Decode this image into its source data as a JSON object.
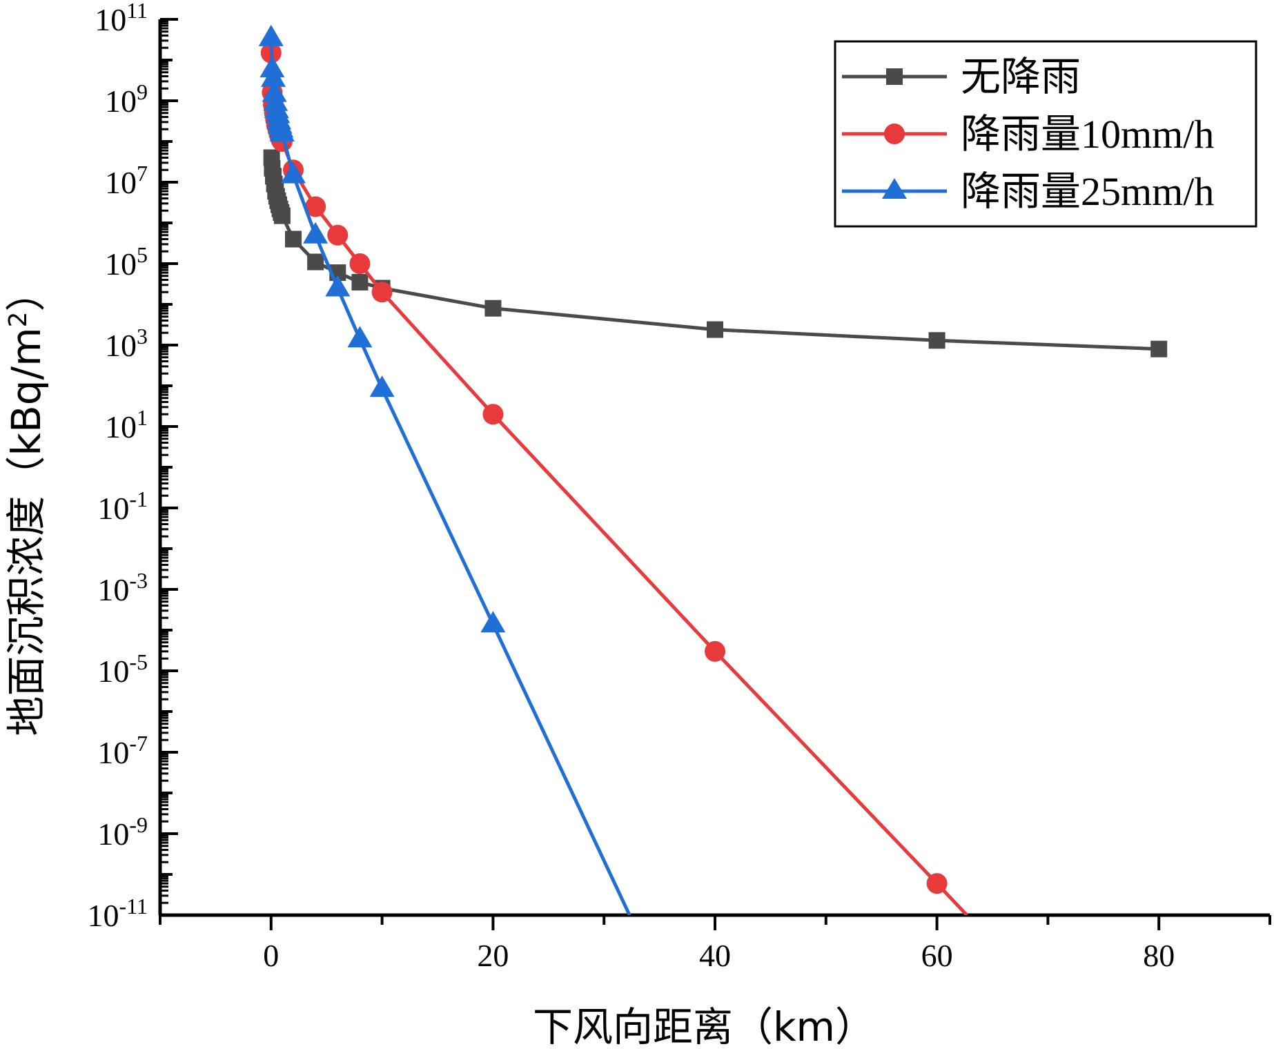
{
  "chart_data": {
    "type": "line",
    "title": "",
    "xlabel": "下风向距离（km）",
    "ylabel_main": "地面沉积浓度（kBq/m",
    "ylabel_sup": "2",
    "ylabel_close": "）",
    "ylabel": "地面沉积浓度（kBq/m2）",
    "yscale": "log",
    "xlim": [
      -10,
      90
    ],
    "ylim_exp": [
      -11,
      11
    ],
    "x_ticks": [
      0,
      20,
      40,
      60,
      80
    ],
    "x_tick_labels": [
      "0",
      "20",
      "40",
      "60",
      "80"
    ],
    "y_ticks_exp": [
      11,
      9,
      7,
      5,
      3,
      1,
      -1,
      -3,
      -5,
      -7,
      -9,
      -11
    ],
    "y_tick_labels": [
      {
        "base": "10",
        "exp": "11"
      },
      {
        "base": "10",
        "exp": "9"
      },
      {
        "base": "10",
        "exp": "7"
      },
      {
        "base": "10",
        "exp": "5"
      },
      {
        "base": "10",
        "exp": "3"
      },
      {
        "base": "10",
        "exp": "1"
      },
      {
        "base": "10",
        "exp": "-1"
      },
      {
        "base": "10",
        "exp": "-3"
      },
      {
        "base": "10",
        "exp": "-5"
      },
      {
        "base": "10",
        "exp": "-7"
      },
      {
        "base": "10",
        "exp": "-9"
      },
      {
        "base": "10",
        "exp": "-11"
      }
    ],
    "legend_position": "top-right",
    "series": [
      {
        "name": "无降雨",
        "color": "#4a4a4a",
        "marker": "square",
        "x": [
          0.05,
          0.1,
          0.2,
          0.3,
          0.4,
          0.5,
          0.6,
          0.7,
          0.8,
          0.9,
          1,
          2,
          4,
          6,
          8,
          10,
          20,
          40,
          60,
          80
        ],
        "y": [
          40000000.0,
          22000000.0,
          14000000.0,
          9000000.0,
          6000000.0,
          4500000.0,
          3500000.0,
          2800000.0,
          2200000.0,
          1800000.0,
          1500000.0,
          400000.0,
          110000.0,
          60000.0,
          35000.0,
          25000.0,
          8000.0,
          2400.0,
          1300.0,
          800.0
        ]
      },
      {
        "name": "降雨量10mm/h",
        "color": "#e8393b",
        "marker": "circle",
        "x": [
          0,
          0.1,
          0.2,
          0.3,
          0.4,
          0.5,
          0.6,
          0.7,
          0.8,
          0.9,
          1,
          2,
          4,
          6,
          8,
          10,
          20,
          40,
          60,
          62.7
        ],
        "y": [
          15000000000.0,
          1600000000.0,
          800000000.0,
          500000000.0,
          350000000.0,
          250000000.0,
          200000000.0,
          160000000.0,
          130000000.0,
          110000000.0,
          100000000.0,
          20000000.0,
          2500000.0,
          500000.0,
          100000.0,
          20000.0,
          20,
          3e-05,
          6e-11,
          1e-11
        ]
      },
      {
        "name": "降雨量25mm/h",
        "color": "#1f6fd6",
        "marker": "triangle",
        "x": [
          0,
          0.1,
          0.2,
          0.3,
          0.4,
          0.5,
          0.6,
          0.7,
          0.8,
          0.9,
          1,
          2,
          4,
          6,
          8,
          10,
          20,
          32.3
        ],
        "y": [
          35000000000.0,
          6000000000.0,
          3500000000.0,
          1500000000.0,
          900000000.0,
          600000000.0,
          450000000.0,
          320000000.0,
          250000000.0,
          200000000.0,
          160000000.0,
          15000000.0,
          500000.0,
          25000.0,
          1400.0,
          85,
          0.00014,
          1e-11
        ]
      }
    ]
  }
}
